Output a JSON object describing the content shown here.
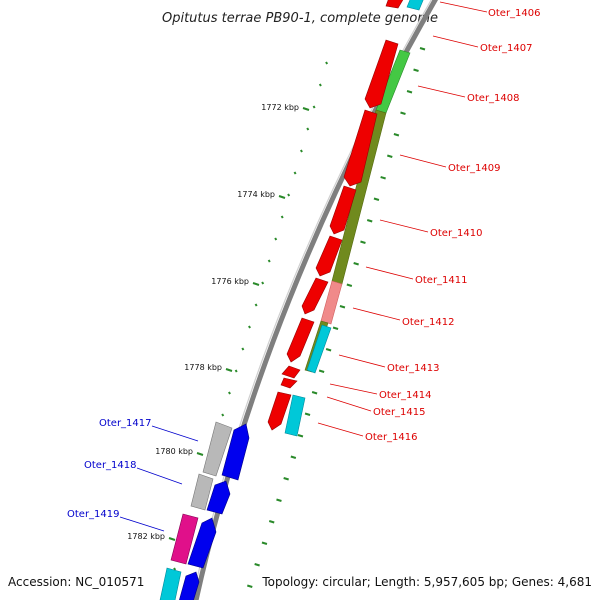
{
  "title": "Opitutus terrae PB90-1, complete genome",
  "footer": {
    "accession": "Accession: NC_010571",
    "topology": "Topology: circular; Length: 5,957,605 bp; Genes: 4,681"
  },
  "tick_labels": [
    "1772 kbp",
    "1774 kbp",
    "1776 kbp",
    "1778 kbp",
    "1780 kbp",
    "1782 kbp"
  ],
  "colors": {
    "backbone": "#7f7f7f",
    "tick": "#2a8a2a",
    "red_gene": "#ee0000",
    "blue_gene": "#0000ee",
    "cyan_gene": "#00c8d8",
    "gray_gene": "#b8b8b8",
    "magenta_gene": "#e0108a",
    "green_feature": "#44c844",
    "olive_feature": "#708a1e",
    "pink_feature": "#f08a8a",
    "label_red": "#dd0000",
    "label_blue": "#0000cc"
  },
  "genes_right": [
    "Oter_1406",
    "Oter_1407",
    "Oter_1408",
    "Oter_1409",
    "Oter_1410",
    "Oter_1411",
    "Oter_1412",
    "Oter_1413",
    "Oter_1414",
    "Oter_1415",
    "Oter_1416"
  ],
  "genes_left": [
    "Oter_1417",
    "Oter_1418",
    "Oter_1419"
  ]
}
